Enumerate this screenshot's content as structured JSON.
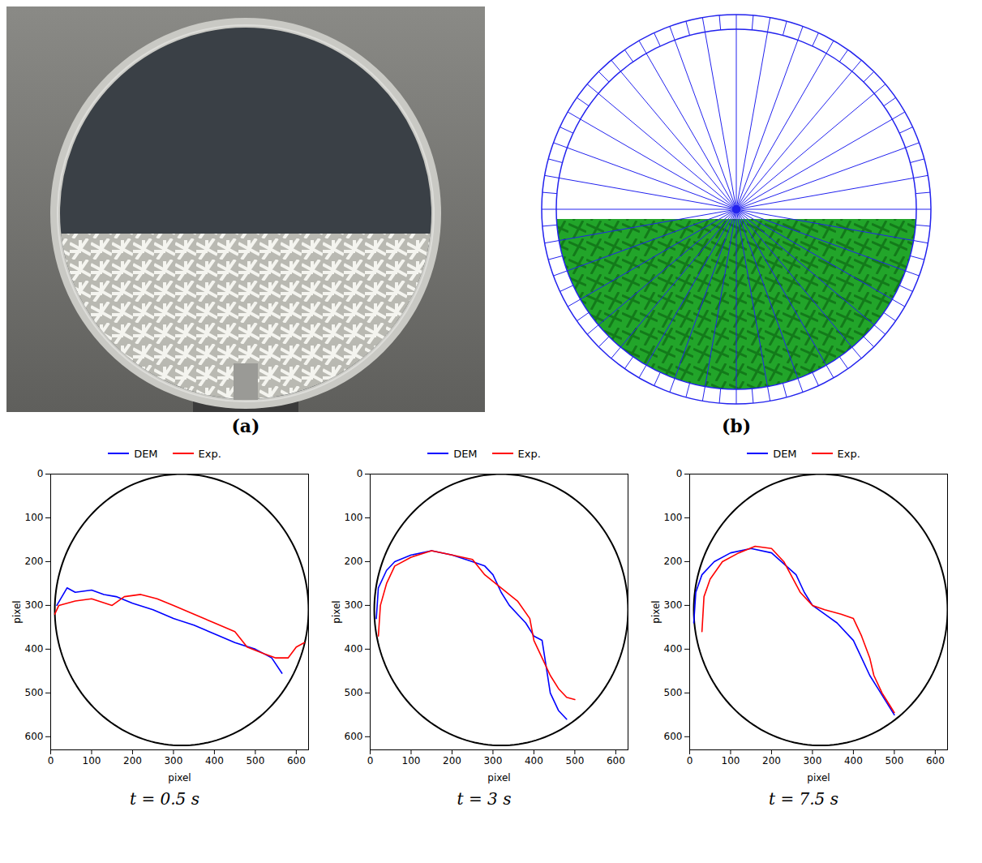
{
  "panels": [
    {
      "label": "(a)"
    },
    {
      "label": "(b)"
    }
  ],
  "chart_data": [
    {
      "type": "line",
      "caption": "t = 0.5 s",
      "x_label": "pixel",
      "y_label": "pixel",
      "xlim": [
        0,
        630
      ],
      "xticks": [
        0,
        100,
        200,
        300,
        400,
        500,
        600
      ],
      "ylim": [
        630,
        0
      ],
      "yticks": [
        0,
        100,
        200,
        300,
        400,
        500,
        600
      ],
      "legend": "top",
      "circle": {
        "cx": 320,
        "cy": 310,
        "r": 310,
        "color": "#000000"
      },
      "series": [
        {
          "name": "DEM",
          "color": "#0000ff",
          "x": [
            15,
            40,
            60,
            100,
            130,
            160,
            200,
            250,
            300,
            350,
            400,
            450,
            500,
            540,
            565
          ],
          "values": [
            300,
            260,
            270,
            265,
            275,
            280,
            295,
            310,
            330,
            345,
            365,
            385,
            400,
            420,
            455
          ]
        },
        {
          "name": "Exp.",
          "color": "#ff0000",
          "x": [
            10,
            20,
            60,
            100,
            150,
            180,
            220,
            260,
            300,
            350,
            400,
            450,
            480,
            520,
            550,
            580,
            600,
            620
          ],
          "values": [
            320,
            300,
            290,
            285,
            300,
            280,
            275,
            285,
            300,
            320,
            340,
            360,
            395,
            410,
            420,
            420,
            395,
            385
          ]
        }
      ]
    },
    {
      "type": "line",
      "caption": "t = 3 s",
      "x_label": "pixel",
      "y_label": "pixel",
      "xlim": [
        0,
        630
      ],
      "xticks": [
        0,
        100,
        200,
        300,
        400,
        500,
        600
      ],
      "ylim": [
        630,
        0
      ],
      "yticks": [
        0,
        100,
        200,
        300,
        400,
        500,
        600
      ],
      "legend": "top",
      "circle": {
        "cx": 320,
        "cy": 310,
        "r": 310,
        "color": "#000000"
      },
      "series": [
        {
          "name": "DEM",
          "color": "#0000ff",
          "x": [
            15,
            20,
            40,
            60,
            100,
            150,
            200,
            250,
            280,
            300,
            320,
            340,
            360,
            380,
            400,
            420,
            430,
            440,
            460,
            480
          ],
          "values": [
            330,
            260,
            220,
            200,
            185,
            175,
            185,
            200,
            210,
            230,
            270,
            300,
            320,
            340,
            370,
            380,
            440,
            500,
            540,
            560
          ]
        },
        {
          "name": "Exp.",
          "color": "#ff0000",
          "x": [
            20,
            25,
            40,
            60,
            100,
            150,
            200,
            250,
            280,
            320,
            360,
            390,
            400,
            420,
            440,
            460,
            480,
            500
          ],
          "values": [
            370,
            300,
            250,
            210,
            190,
            175,
            185,
            195,
            230,
            260,
            290,
            330,
            380,
            420,
            460,
            490,
            510,
            515
          ]
        }
      ]
    },
    {
      "type": "line",
      "caption": "t = 7.5 s",
      "x_label": "pixel",
      "y_label": "pixel",
      "xlim": [
        0,
        630
      ],
      "xticks": [
        0,
        100,
        200,
        300,
        400,
        500,
        600
      ],
      "ylim": [
        630,
        0
      ],
      "yticks": [
        0,
        100,
        200,
        300,
        400,
        500,
        600
      ],
      "legend": "top",
      "circle": {
        "cx": 320,
        "cy": 310,
        "r": 310,
        "color": "#000000"
      },
      "series": [
        {
          "name": "DEM",
          "color": "#0000ff",
          "x": [
            10,
            15,
            30,
            60,
            100,
            150,
            200,
            230,
            260,
            280,
            300,
            330,
            360,
            400,
            420,
            440,
            460,
            480,
            500
          ],
          "values": [
            340,
            270,
            230,
            200,
            180,
            170,
            180,
            205,
            230,
            270,
            300,
            320,
            340,
            380,
            420,
            460,
            490,
            520,
            550
          ]
        },
        {
          "name": "Exp.",
          "color": "#ff0000",
          "x": [
            30,
            35,
            50,
            80,
            120,
            160,
            200,
            230,
            270,
            300,
            330,
            370,
            400,
            420,
            440,
            450,
            470,
            490,
            500
          ],
          "values": [
            360,
            280,
            240,
            200,
            180,
            165,
            170,
            200,
            270,
            300,
            310,
            320,
            330,
            370,
            420,
            460,
            500,
            530,
            545
          ]
        }
      ]
    }
  ]
}
